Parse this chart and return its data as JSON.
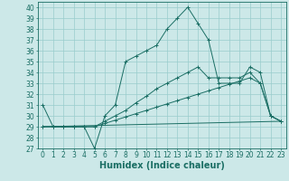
{
  "xlabel": "Humidex (Indice chaleur)",
  "xlim": [
    -0.5,
    23.5
  ],
  "ylim": [
    27,
    40.5
  ],
  "yticks": [
    27,
    28,
    29,
    30,
    31,
    32,
    33,
    34,
    35,
    36,
    37,
    38,
    39,
    40
  ],
  "xticks": [
    0,
    1,
    2,
    3,
    4,
    5,
    6,
    7,
    8,
    9,
    10,
    11,
    12,
    13,
    14,
    15,
    16,
    17,
    18,
    19,
    20,
    21,
    22,
    23
  ],
  "bg_color": "#cce8e8",
  "line_color": "#1a6e64",
  "lines": [
    {
      "x": [
        0,
        1,
        2,
        3,
        4,
        5,
        6,
        7,
        8,
        9,
        10,
        11,
        12,
        13,
        14,
        15,
        16,
        17,
        18,
        19,
        20,
        21,
        22,
        23
      ],
      "y": [
        31,
        29,
        29,
        29,
        29,
        27,
        30,
        31,
        35,
        35.5,
        36,
        36.5,
        38,
        39,
        40,
        38.5,
        37,
        33,
        33,
        33,
        34.5,
        34,
        30,
        29.5
      ],
      "marker": true
    },
    {
      "x": [
        0,
        1,
        2,
        3,
        4,
        5,
        6,
        7,
        8,
        9,
        10,
        11,
        12,
        13,
        14,
        15,
        16,
        17,
        18,
        19,
        20,
        21,
        22,
        23
      ],
      "y": [
        29,
        29,
        29,
        29,
        29,
        29,
        29.5,
        30,
        30.5,
        31.2,
        31.8,
        32.5,
        33,
        33.5,
        34,
        34.5,
        33.5,
        33.5,
        33.5,
        33.5,
        34,
        33,
        30,
        29.5
      ],
      "marker": true
    },
    {
      "x": [
        0,
        1,
        2,
        3,
        4,
        5,
        6,
        7,
        8,
        9,
        10,
        11,
        12,
        13,
        14,
        15,
        16,
        17,
        18,
        19,
        20,
        21,
        22,
        23
      ],
      "y": [
        29,
        29,
        29,
        29,
        29,
        29,
        29.3,
        29.6,
        29.9,
        30.2,
        30.5,
        30.8,
        31.1,
        31.4,
        31.7,
        32.0,
        32.3,
        32.6,
        32.9,
        33.2,
        33.5,
        33.0,
        30.0,
        29.5
      ],
      "marker": true
    },
    {
      "x": [
        0,
        23
      ],
      "y": [
        29,
        29.5
      ],
      "marker": false
    }
  ],
  "grid_color": "#99cccc",
  "tick_fontsize": 5.5,
  "label_fontsize": 7.0
}
